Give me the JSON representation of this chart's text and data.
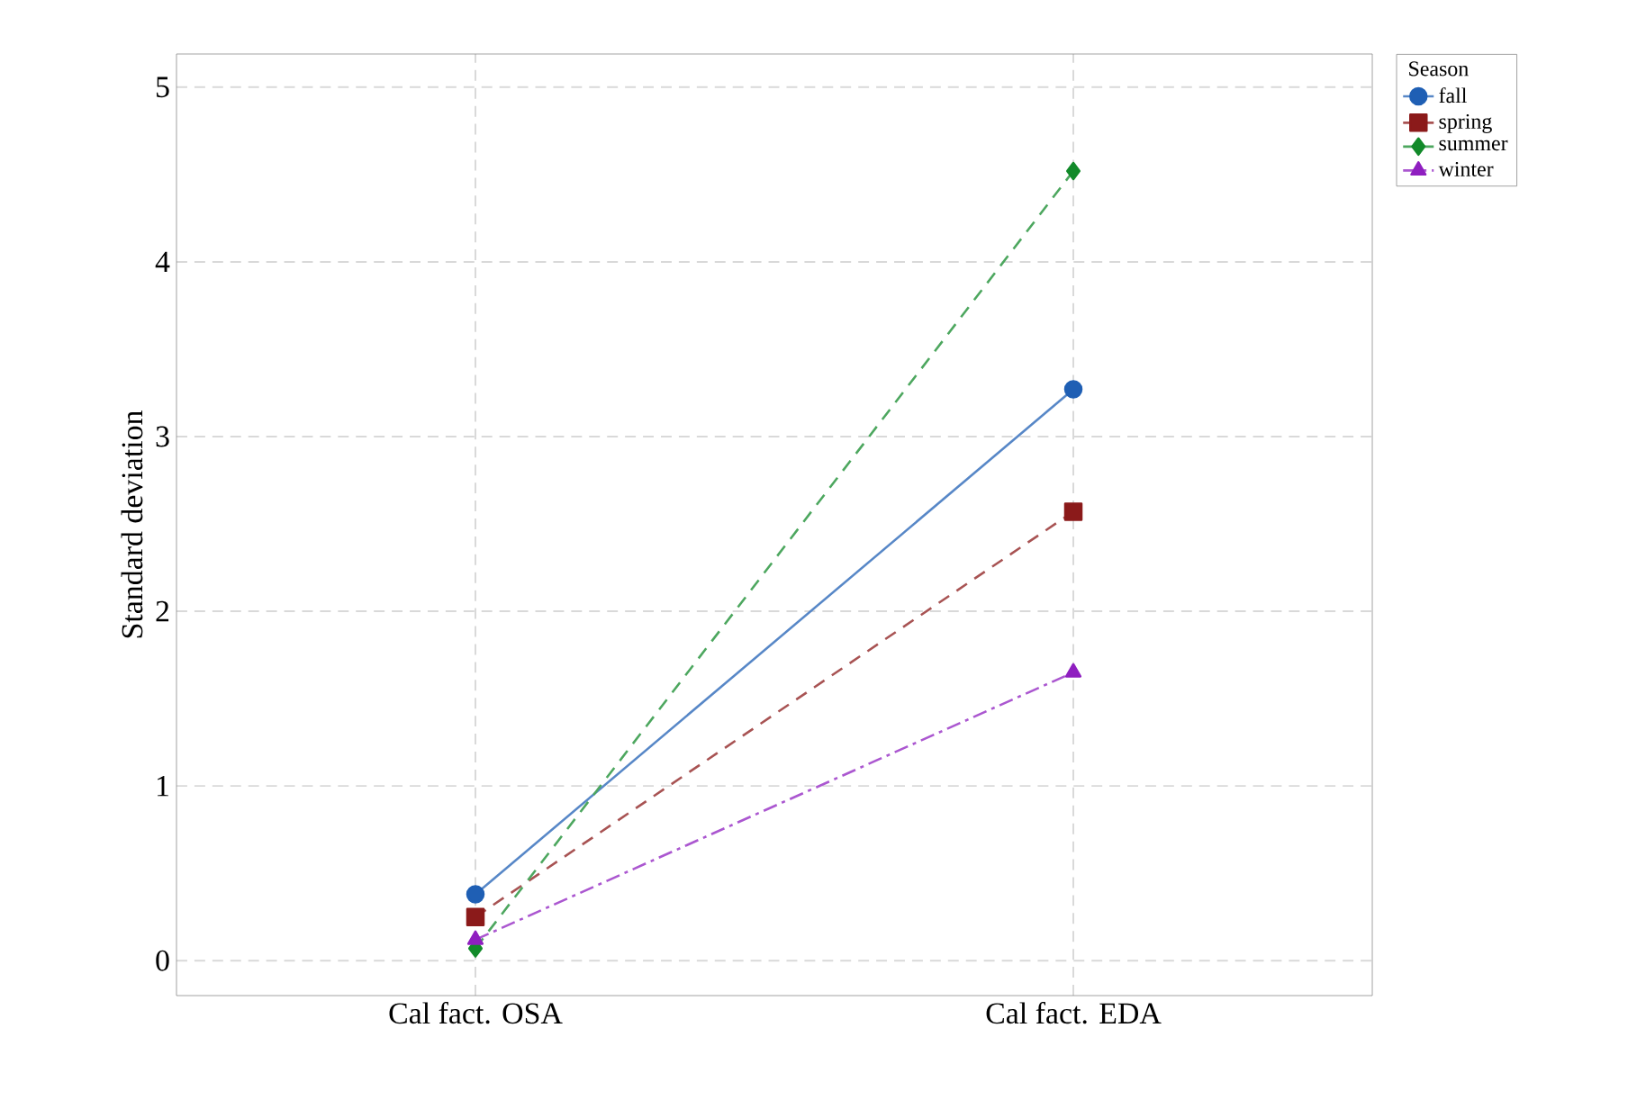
{
  "chart_data": {
    "type": "line",
    "ylabel": "Standard deviation",
    "legend_title": "Season",
    "categories": [
      "Cal fact. OSA",
      "Cal fact. EDA"
    ],
    "series": [
      {
        "name": "fall",
        "color": "#1f5fb4",
        "values": [
          0.38,
          3.27
        ],
        "marker": "circle",
        "line_style": "solid"
      },
      {
        "name": "spring",
        "color": "#8b1a1a",
        "values": [
          0.25,
          2.57
        ],
        "marker": "square",
        "line_style": "dashed"
      },
      {
        "name": "summer",
        "color": "#128a2a",
        "values": [
          0.07,
          4.52
        ],
        "marker": "diamond",
        "line_style": "dashed"
      },
      {
        "name": "winter",
        "color": "#8f1fc0",
        "values": [
          0.12,
          1.65
        ],
        "marker": "triangle",
        "line_style": "dashdot"
      }
    ],
    "ylim": [
      -0.2,
      5.19
    ],
    "yticks": [
      0,
      1,
      2,
      3,
      4,
      5
    ],
    "grid": true,
    "legend": "top right"
  }
}
